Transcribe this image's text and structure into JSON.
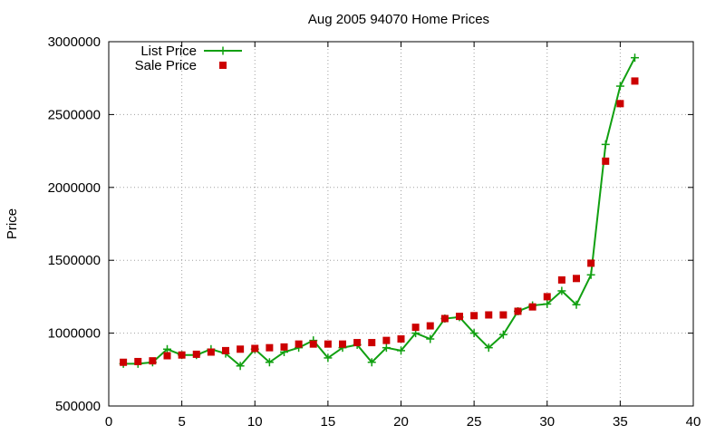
{
  "chart_data": {
    "type": "scatter",
    "title": "Aug 2005 94070 Home Prices",
    "xlabel": "",
    "ylabel": "Price",
    "xlim": [
      0,
      40
    ],
    "ylim": [
      500000,
      3000000
    ],
    "x_ticks": [
      0,
      5,
      10,
      15,
      20,
      25,
      30,
      35,
      40
    ],
    "y_ticks": [
      500000,
      1000000,
      1500000,
      2000000,
      2500000,
      3000000
    ],
    "grid": true,
    "legend_position": "top-left",
    "series": [
      {
        "name": "List Price",
        "style": "linespoints",
        "marker": "plus",
        "color": "#11a011",
        "x": [
          1,
          2,
          3,
          4,
          5,
          6,
          7,
          8,
          9,
          10,
          11,
          12,
          13,
          14,
          15,
          16,
          17,
          18,
          19,
          20,
          21,
          22,
          23,
          24,
          25,
          26,
          27,
          28,
          29,
          30,
          31,
          32,
          33,
          34,
          35,
          36
        ],
        "y": [
          790000,
          790000,
          800000,
          890000,
          850000,
          850000,
          890000,
          860000,
          775000,
          890000,
          800000,
          870000,
          900000,
          950000,
          830000,
          900000,
          920000,
          800000,
          900000,
          880000,
          1000000,
          960000,
          1100000,
          1110000,
          1000000,
          900000,
          990000,
          1150000,
          1190000,
          1200000,
          1290000,
          1195000,
          1400000,
          2295000,
          2695000,
          2890000
        ]
      },
      {
        "name": "Sale Price",
        "style": "points",
        "marker": "square",
        "color": "#cc0000",
        "x": [
          1,
          2,
          3,
          4,
          5,
          6,
          7,
          8,
          9,
          10,
          11,
          12,
          13,
          14,
          15,
          16,
          17,
          18,
          19,
          20,
          21,
          22,
          23,
          24,
          25,
          26,
          27,
          28,
          29,
          30,
          31,
          32,
          33,
          34,
          35,
          36
        ],
        "y": [
          800000,
          805000,
          810000,
          845000,
          850000,
          855000,
          870000,
          880000,
          890000,
          895000,
          900000,
          905000,
          925000,
          925000,
          925000,
          925000,
          935000,
          935000,
          950000,
          960000,
          1040000,
          1050000,
          1100000,
          1115000,
          1120000,
          1125000,
          1125000,
          1150000,
          1180000,
          1250000,
          1365000,
          1375000,
          1480000,
          2180000,
          2575000,
          2730000
        ]
      }
    ]
  }
}
